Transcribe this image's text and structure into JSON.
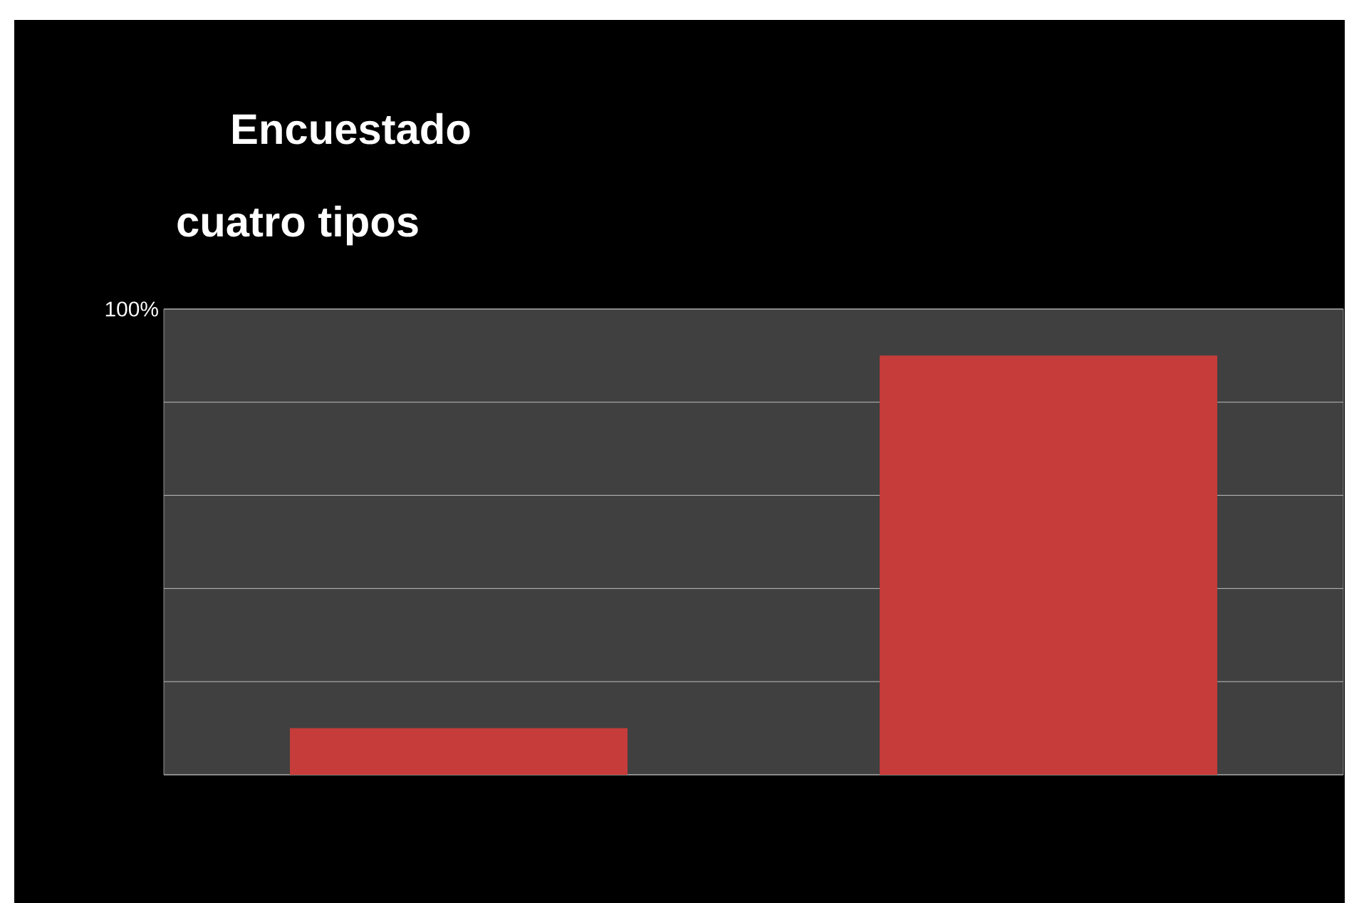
{
  "chart_data": {
    "type": "bar",
    "title": "Encuestado",
    "subtitle": "cuatro tipos",
    "categories": [
      null,
      null
    ],
    "values": [
      10,
      90
    ],
    "color": "#c63c3a",
    "ylim": [
      0,
      100
    ],
    "yticks": [
      {
        "value": 0,
        "label": null
      },
      {
        "value": 20,
        "label": null
      },
      {
        "value": 40,
        "label": null
      },
      {
        "value": 60,
        "label": null
      },
      {
        "value": 80,
        "label": null
      },
      {
        "value": 100,
        "label": "100%"
      }
    ],
    "grid": true
  }
}
